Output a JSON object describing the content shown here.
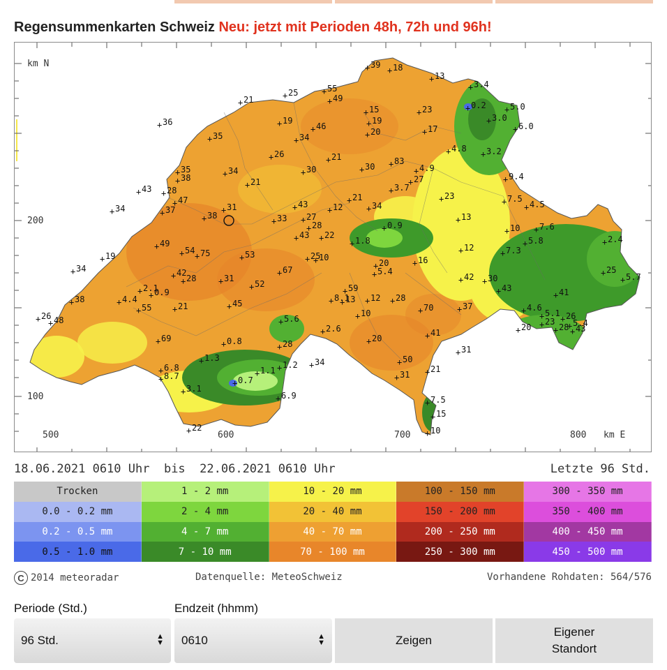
{
  "page": {
    "title": "Regensummenkarten Schweiz",
    "title_highlight": "Neu: jetzt mit Perioden 48h, 72h und 96h!",
    "accent_color": "#e0321e"
  },
  "map": {
    "axis_label_north": "km N",
    "axis_label_east": "km E",
    "y_labels": [
      "200",
      "100"
    ],
    "x_labels": [
      "500",
      "600",
      "700",
      "800"
    ],
    "stations": [
      {
        "label": "39"
      },
      {
        "label": "18"
      },
      {
        "label": "13"
      },
      {
        "label": "3.4"
      },
      {
        "label": "25"
      },
      {
        "label": "55"
      },
      {
        "label": "49"
      },
      {
        "label": "21"
      },
      {
        "label": "0.2"
      },
      {
        "label": "5.0"
      },
      {
        "label": "15"
      },
      {
        "label": "23"
      },
      {
        "label": "19"
      },
      {
        "label": "3.0"
      },
      {
        "label": "36"
      },
      {
        "label": "19"
      },
      {
        "label": "46"
      },
      {
        "label": "17"
      },
      {
        "label": "6.0"
      },
      {
        "label": "35"
      },
      {
        "label": "34"
      },
      {
        "label": "20"
      },
      {
        "label": "4.8"
      },
      {
        "label": "3.2"
      },
      {
        "label": "26"
      },
      {
        "label": "21"
      },
      {
        "label": "83"
      },
      {
        "label": "35"
      },
      {
        "label": "34"
      },
      {
        "label": "30"
      },
      {
        "label": "30"
      },
      {
        "label": "4.9"
      },
      {
        "label": "38"
      },
      {
        "label": "21"
      },
      {
        "label": "27"
      },
      {
        "label": "9.4"
      },
      {
        "label": "43"
      },
      {
        "label": "28"
      },
      {
        "label": "3.7"
      },
      {
        "label": "23"
      },
      {
        "label": "47"
      },
      {
        "label": "21"
      },
      {
        "label": "7.5"
      },
      {
        "label": "4.5"
      },
      {
        "label": "34"
      },
      {
        "label": "37"
      },
      {
        "label": "31"
      },
      {
        "label": "43"
      },
      {
        "label": "12"
      },
      {
        "label": "34"
      },
      {
        "label": "38"
      },
      {
        "label": "33"
      },
      {
        "label": "27"
      },
      {
        "label": "13"
      },
      {
        "label": "10"
      },
      {
        "label": "7.6"
      },
      {
        "label": "28"
      },
      {
        "label": "0.9"
      },
      {
        "label": "43"
      },
      {
        "label": "22"
      },
      {
        "label": "1.8"
      },
      {
        "label": "5.8"
      },
      {
        "label": "2.4"
      },
      {
        "label": "49"
      },
      {
        "label": "54"
      },
      {
        "label": "12"
      },
      {
        "label": "7.3"
      },
      {
        "label": "19"
      },
      {
        "label": "75"
      },
      {
        "label": "53"
      },
      {
        "label": "25"
      },
      {
        "label": "10"
      },
      {
        "label": "16"
      },
      {
        "label": "20"
      },
      {
        "label": "34"
      },
      {
        "label": "42"
      },
      {
        "label": "67"
      },
      {
        "label": "28"
      },
      {
        "label": "5.4"
      },
      {
        "label": "31"
      },
      {
        "label": "42"
      },
      {
        "label": "30"
      },
      {
        "label": "25"
      },
      {
        "label": "5.7"
      },
      {
        "label": "2.1"
      },
      {
        "label": "0.9"
      },
      {
        "label": "52"
      },
      {
        "label": "59"
      },
      {
        "label": "43"
      },
      {
        "label": "8.1"
      },
      {
        "label": "12"
      },
      {
        "label": "28"
      },
      {
        "label": "41"
      },
      {
        "label": "38"
      },
      {
        "label": "4.4"
      },
      {
        "label": "55"
      },
      {
        "label": "21"
      },
      {
        "label": "45"
      },
      {
        "label": "13"
      },
      {
        "label": "70"
      },
      {
        "label": "37"
      },
      {
        "label": "4.6"
      },
      {
        "label": "26"
      },
      {
        "label": "48"
      },
      {
        "label": "10"
      },
      {
        "label": "5.1"
      },
      {
        "label": "26"
      },
      {
        "label": "5.4"
      },
      {
        "label": "5.6"
      },
      {
        "label": "23"
      },
      {
        "label": "28"
      },
      {
        "label": "20"
      },
      {
        "label": "2.6"
      },
      {
        "label": "43"
      },
      {
        "label": "69"
      },
      {
        "label": "41"
      },
      {
        "label": "20"
      },
      {
        "label": "0.8"
      },
      {
        "label": "28"
      },
      {
        "label": "31"
      },
      {
        "label": "1.3"
      },
      {
        "label": "34"
      },
      {
        "label": "50"
      },
      {
        "label": "6.8"
      },
      {
        "label": "1.2"
      },
      {
        "label": "8.7"
      },
      {
        "label": "1.1"
      },
      {
        "label": "0.7"
      },
      {
        "label": "21"
      },
      {
        "label": "31"
      },
      {
        "label": "3.1"
      },
      {
        "label": "6.9"
      },
      {
        "label": "7.5"
      },
      {
        "label": "15"
      },
      {
        "label": "22"
      },
      {
        "label": "10"
      }
    ]
  },
  "period": {
    "from": "18.06.2021 0610 Uhr",
    "bis": "bis",
    "to": "22.06.2021 0610 Uhr",
    "last": "Letzte 96 Std."
  },
  "legend": [
    {
      "label": "Trocken",
      "color": "#c8c8c8",
      "text": "#222222"
    },
    {
      "label": "1 - 2 mm",
      "color": "#b6f07a",
      "text": "#222222"
    },
    {
      "label": "10 - 20 mm",
      "color": "#f6f24a",
      "text": "#222222"
    },
    {
      "label": "100 - 150 mm",
      "color": "#c97a2a",
      "text": "#222222"
    },
    {
      "label": "300 - 350 mm",
      "color": "#e676e6",
      "text": "#222222"
    },
    {
      "label": "0.0 - 0.2 mm",
      "color": "#aab8f2",
      "text": "#222222"
    },
    {
      "label": "2 - 4 mm",
      "color": "#7ed63e",
      "text": "#222222"
    },
    {
      "label": "20 - 40 mm",
      "color": "#f2c236",
      "text": "#222222"
    },
    {
      "label": "150 - 200 mm",
      "color": "#e2432a",
      "text": "#222222"
    },
    {
      "label": "350 - 400 mm",
      "color": "#dc4edc",
      "text": "#222222"
    },
    {
      "label": "0.2 - 0.5 mm",
      "color": "#7c94f0",
      "text": "#ffffff"
    },
    {
      "label": "4 - 7 mm",
      "color": "#52b032",
      "text": "#ffffff"
    },
    {
      "label": "40 - 70 mm",
      "color": "#eea032",
      "text": "#ffffff"
    },
    {
      "label": "200 - 250 mm",
      "color": "#b02a1e",
      "text": "#ffffff"
    },
    {
      "label": "400 - 450 mm",
      "color": "#a238a2",
      "text": "#ffffff"
    },
    {
      "label": "0.5 - 1.0 mm",
      "color": "#4a6ae8",
      "text": "#111111"
    },
    {
      "label": "7 - 10 mm",
      "color": "#3a8a28",
      "text": "#ffffff"
    },
    {
      "label": "70 - 100 mm",
      "color": "#e8862a",
      "text": "#ffffff"
    },
    {
      "label": "250 - 300 mm",
      "color": "#781812",
      "text": "#ffffff"
    },
    {
      "label": "450 - 500 mm",
      "color": "#8a3ae8",
      "text": "#ffffff"
    }
  ],
  "footer": {
    "copyright_symbol": "C",
    "copyright_text": "2014 meteoradar",
    "source": "Datenquelle: MeteoSchweiz",
    "raw_data": "Vorhandene Rohdaten: 564/576"
  },
  "form": {
    "period_label": "Periode (Std.)",
    "period_value": "96 Std.",
    "endtime_label": "Endzeit (hhmm)",
    "endtime_value": "0610",
    "show_button": "Zeigen",
    "location_button_line1": "Eigener",
    "location_button_line2": "Standort"
  }
}
